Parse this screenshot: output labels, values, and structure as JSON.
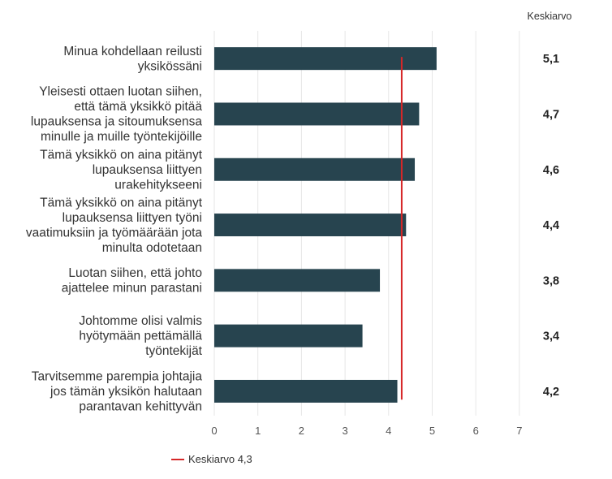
{
  "chart_data": {
    "type": "bar",
    "orientation": "horizontal",
    "categories": [
      [
        "Minua kohdellaan reilusti",
        "yksikössäni"
      ],
      [
        "Yleisesti ottaen luotan siihen,",
        "että tämä yksikkö pitää",
        "lupauksensa ja sitoumuksensa",
        "minulle ja muille työntekijöille"
      ],
      [
        "Tämä yksikkö on aina pitänyt",
        "lupauksensa liittyen",
        "urakehitykseeni"
      ],
      [
        "Tämä yksikkö on aina pitänyt",
        "lupauksensa liittyen työni",
        "vaatimuksiin ja työmäärään jota",
        "minulta odotetaan"
      ],
      [
        "Luotan siihen, että johto",
        "ajattelee minun parastani"
      ],
      [
        "Johtomme olisi valmis",
        "hyötymään pettämällä",
        "työntekijät"
      ],
      [
        "Tarvitsemme parempia johtajia",
        "jos tämän yksikön halutaan",
        "parantavan kehittyvän"
      ]
    ],
    "values": [
      5.1,
      4.7,
      4.6,
      4.4,
      3.8,
      3.4,
      4.2
    ],
    "value_labels": [
      "5,1",
      "4,7",
      "4,6",
      "4,4",
      "3,8",
      "3,4",
      "4,2"
    ],
    "value_column_header": "Keskiarvo",
    "xlim": [
      0,
      7
    ],
    "xticks": [
      0,
      1,
      2,
      3,
      4,
      5,
      6,
      7
    ],
    "grid": true,
    "bar_color": "#27444f",
    "reference_line": {
      "value": 4.3,
      "label": "Keskiarvo 4,3",
      "color": "#d62728"
    },
    "legend_position": "bottom-left"
  }
}
